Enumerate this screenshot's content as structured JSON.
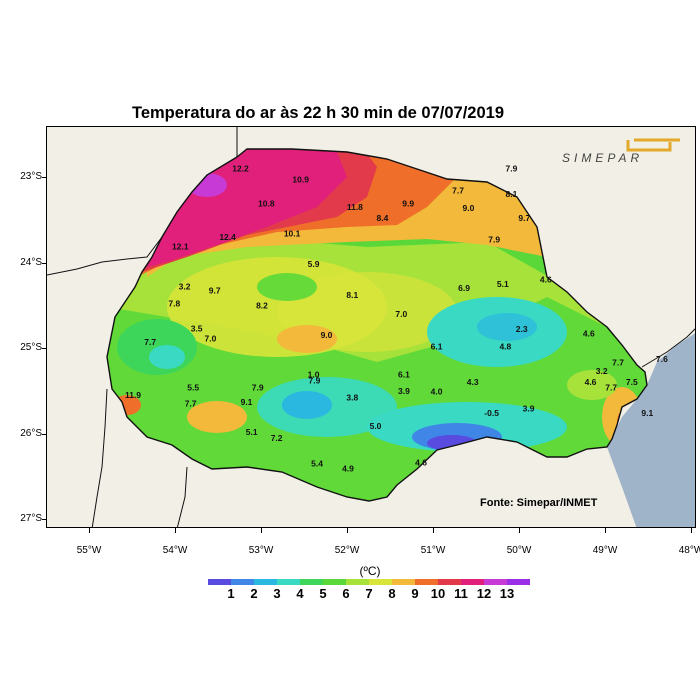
{
  "title": "Temperatura do ar às 22 h 30 min de 07/07/2019",
  "source": "Fonte: Simepar/INMET",
  "logo_text": "SIMEPAR",
  "lat_ticks": [
    "23°S",
    "24°S",
    "25°S",
    "26°S",
    "27°S"
  ],
  "lon_ticks": [
    "55°W",
    "54°W",
    "53°W",
    "52°W",
    "51°W",
    "50°W",
    "49°W",
    "48°W"
  ],
  "legend": {
    "unit": "(ºC)",
    "labels": [
      "1",
      "2",
      "3",
      "4",
      "5",
      "6",
      "7",
      "8",
      "9",
      "10",
      "11",
      "12",
      "13"
    ],
    "colors": [
      "#5a4be0",
      "#3f86e6",
      "#2ab7e0",
      "#3ad9c4",
      "#3ed65a",
      "#5ad83a",
      "#a6e23a",
      "#d8e43a",
      "#f2b93a",
      "#ef6f2a",
      "#e23a4a",
      "#e0207a",
      "#c83ad6",
      "#9a2ee6"
    ]
  },
  "colors": {
    "ocean": "#9fb4c9",
    "land_outside": "#f1efe6",
    "border": "#111111"
  },
  "stations": [
    {
      "label": "12.2",
      "lon": -53.25,
      "lat": -22.92
    },
    {
      "label": "10.9",
      "lon": -52.55,
      "lat": -23.05
    },
    {
      "label": "10.8",
      "lon": -52.95,
      "lat": -23.33
    },
    {
      "label": "11.8",
      "lon": -51.92,
      "lat": -23.37
    },
    {
      "label": "9.9",
      "lon": -51.3,
      "lat": -23.33
    },
    {
      "label": "7.7",
      "lon": -50.72,
      "lat": -23.18
    },
    {
      "label": "9.0",
      "lon": -50.6,
      "lat": -23.38
    },
    {
      "label": "8.1",
      "lon": -50.1,
      "lat": -23.22
    },
    {
      "label": "9.7",
      "lon": -49.95,
      "lat": -23.5
    },
    {
      "label": "7.9",
      "lon": -50.1,
      "lat": -22.92
    },
    {
      "label": "8.4",
      "lon": -51.6,
      "lat": -23.5
    },
    {
      "label": "12.4",
      "lon": -53.4,
      "lat": -23.72
    },
    {
      "label": "10.1",
      "lon": -52.65,
      "lat": -23.68
    },
    {
      "label": "12.1",
      "lon": -53.95,
      "lat": -23.83
    },
    {
      "label": "7.9",
      "lon": -50.3,
      "lat": -23.75
    },
    {
      "label": "5.9",
      "lon": -52.4,
      "lat": -24.04
    },
    {
      "label": "3.2",
      "lon": -53.9,
      "lat": -24.3
    },
    {
      "label": "9.7",
      "lon": -53.55,
      "lat": -24.35
    },
    {
      "label": "8.1",
      "lon": -51.95,
      "lat": -24.4
    },
    {
      "label": "6.9",
      "lon": -50.65,
      "lat": -24.32
    },
    {
      "label": "5.1",
      "lon": -50.2,
      "lat": -24.27
    },
    {
      "label": "4.6",
      "lon": -49.7,
      "lat": -24.22
    },
    {
      "label": "7.8",
      "lon": -54.02,
      "lat": -24.5
    },
    {
      "label": "8.2",
      "lon": -53.0,
      "lat": -24.52
    },
    {
      "label": "7.0",
      "lon": -51.38,
      "lat": -24.62
    },
    {
      "label": "3.5",
      "lon": -53.76,
      "lat": -24.79
    },
    {
      "label": "7.0",
      "lon": -53.6,
      "lat": -24.91
    },
    {
      "label": "7.7",
      "lon": -54.3,
      "lat": -24.95
    },
    {
      "label": "9.0",
      "lon": -52.25,
      "lat": -24.87
    },
    {
      "label": "2.3",
      "lon": -49.98,
      "lat": -24.8
    },
    {
      "label": "4.6",
      "lon": -49.2,
      "lat": -24.85
    },
    {
      "label": "6.1",
      "lon": -50.97,
      "lat": -25.0
    },
    {
      "label": "4.8",
      "lon": -50.17,
      "lat": -25.0
    },
    {
      "label": "7.7",
      "lon": -48.86,
      "lat": -25.19
    },
    {
      "label": "7.6",
      "lon": -48.35,
      "lat": -25.15
    },
    {
      "label": "1.0",
      "lon": -52.4,
      "lat": -25.33
    },
    {
      "label": "6.1",
      "lon": -51.35,
      "lat": -25.33
    },
    {
      "label": "3.2",
      "lon": -49.05,
      "lat": -25.29
    },
    {
      "label": "7.9",
      "lon": -52.39,
      "lat": -25.4
    },
    {
      "label": "4.3",
      "lon": -50.55,
      "lat": -25.42
    },
    {
      "label": "4.6",
      "lon": -49.18,
      "lat": -25.42
    },
    {
      "label": "7.5",
      "lon": -48.7,
      "lat": -25.42
    },
    {
      "label": "5.5",
      "lon": -53.8,
      "lat": -25.48
    },
    {
      "label": "7.9",
      "lon": -53.05,
      "lat": -25.48
    },
    {
      "label": "3.9",
      "lon": -51.35,
      "lat": -25.52
    },
    {
      "label": "4.0",
      "lon": -50.97,
      "lat": -25.53
    },
    {
      "label": "7.7",
      "lon": -48.94,
      "lat": -25.48
    },
    {
      "label": "11.9",
      "lon": -54.5,
      "lat": -25.57
    },
    {
      "label": "3.8",
      "lon": -51.95,
      "lat": -25.6
    },
    {
      "label": "9.1",
      "lon": -53.18,
      "lat": -25.65
    },
    {
      "label": "7.7",
      "lon": -53.83,
      "lat": -25.67
    },
    {
      "label": "-0.5",
      "lon": -50.33,
      "lat": -25.78
    },
    {
      "label": "3.9",
      "lon": -49.9,
      "lat": -25.73
    },
    {
      "label": "9.1",
      "lon": -48.52,
      "lat": -25.78
    },
    {
      "label": "5.0",
      "lon": -51.68,
      "lat": -25.93
    },
    {
      "label": "5.1",
      "lon": -53.12,
      "lat": -26.0
    },
    {
      "label": "7.2",
      "lon": -52.83,
      "lat": -26.07
    },
    {
      "label": "5.4",
      "lon": -52.36,
      "lat": -26.37
    },
    {
      "label": "4.9",
      "lon": -52.0,
      "lat": -26.43
    },
    {
      "label": "4.6",
      "lon": -51.15,
      "lat": -26.36
    }
  ]
}
